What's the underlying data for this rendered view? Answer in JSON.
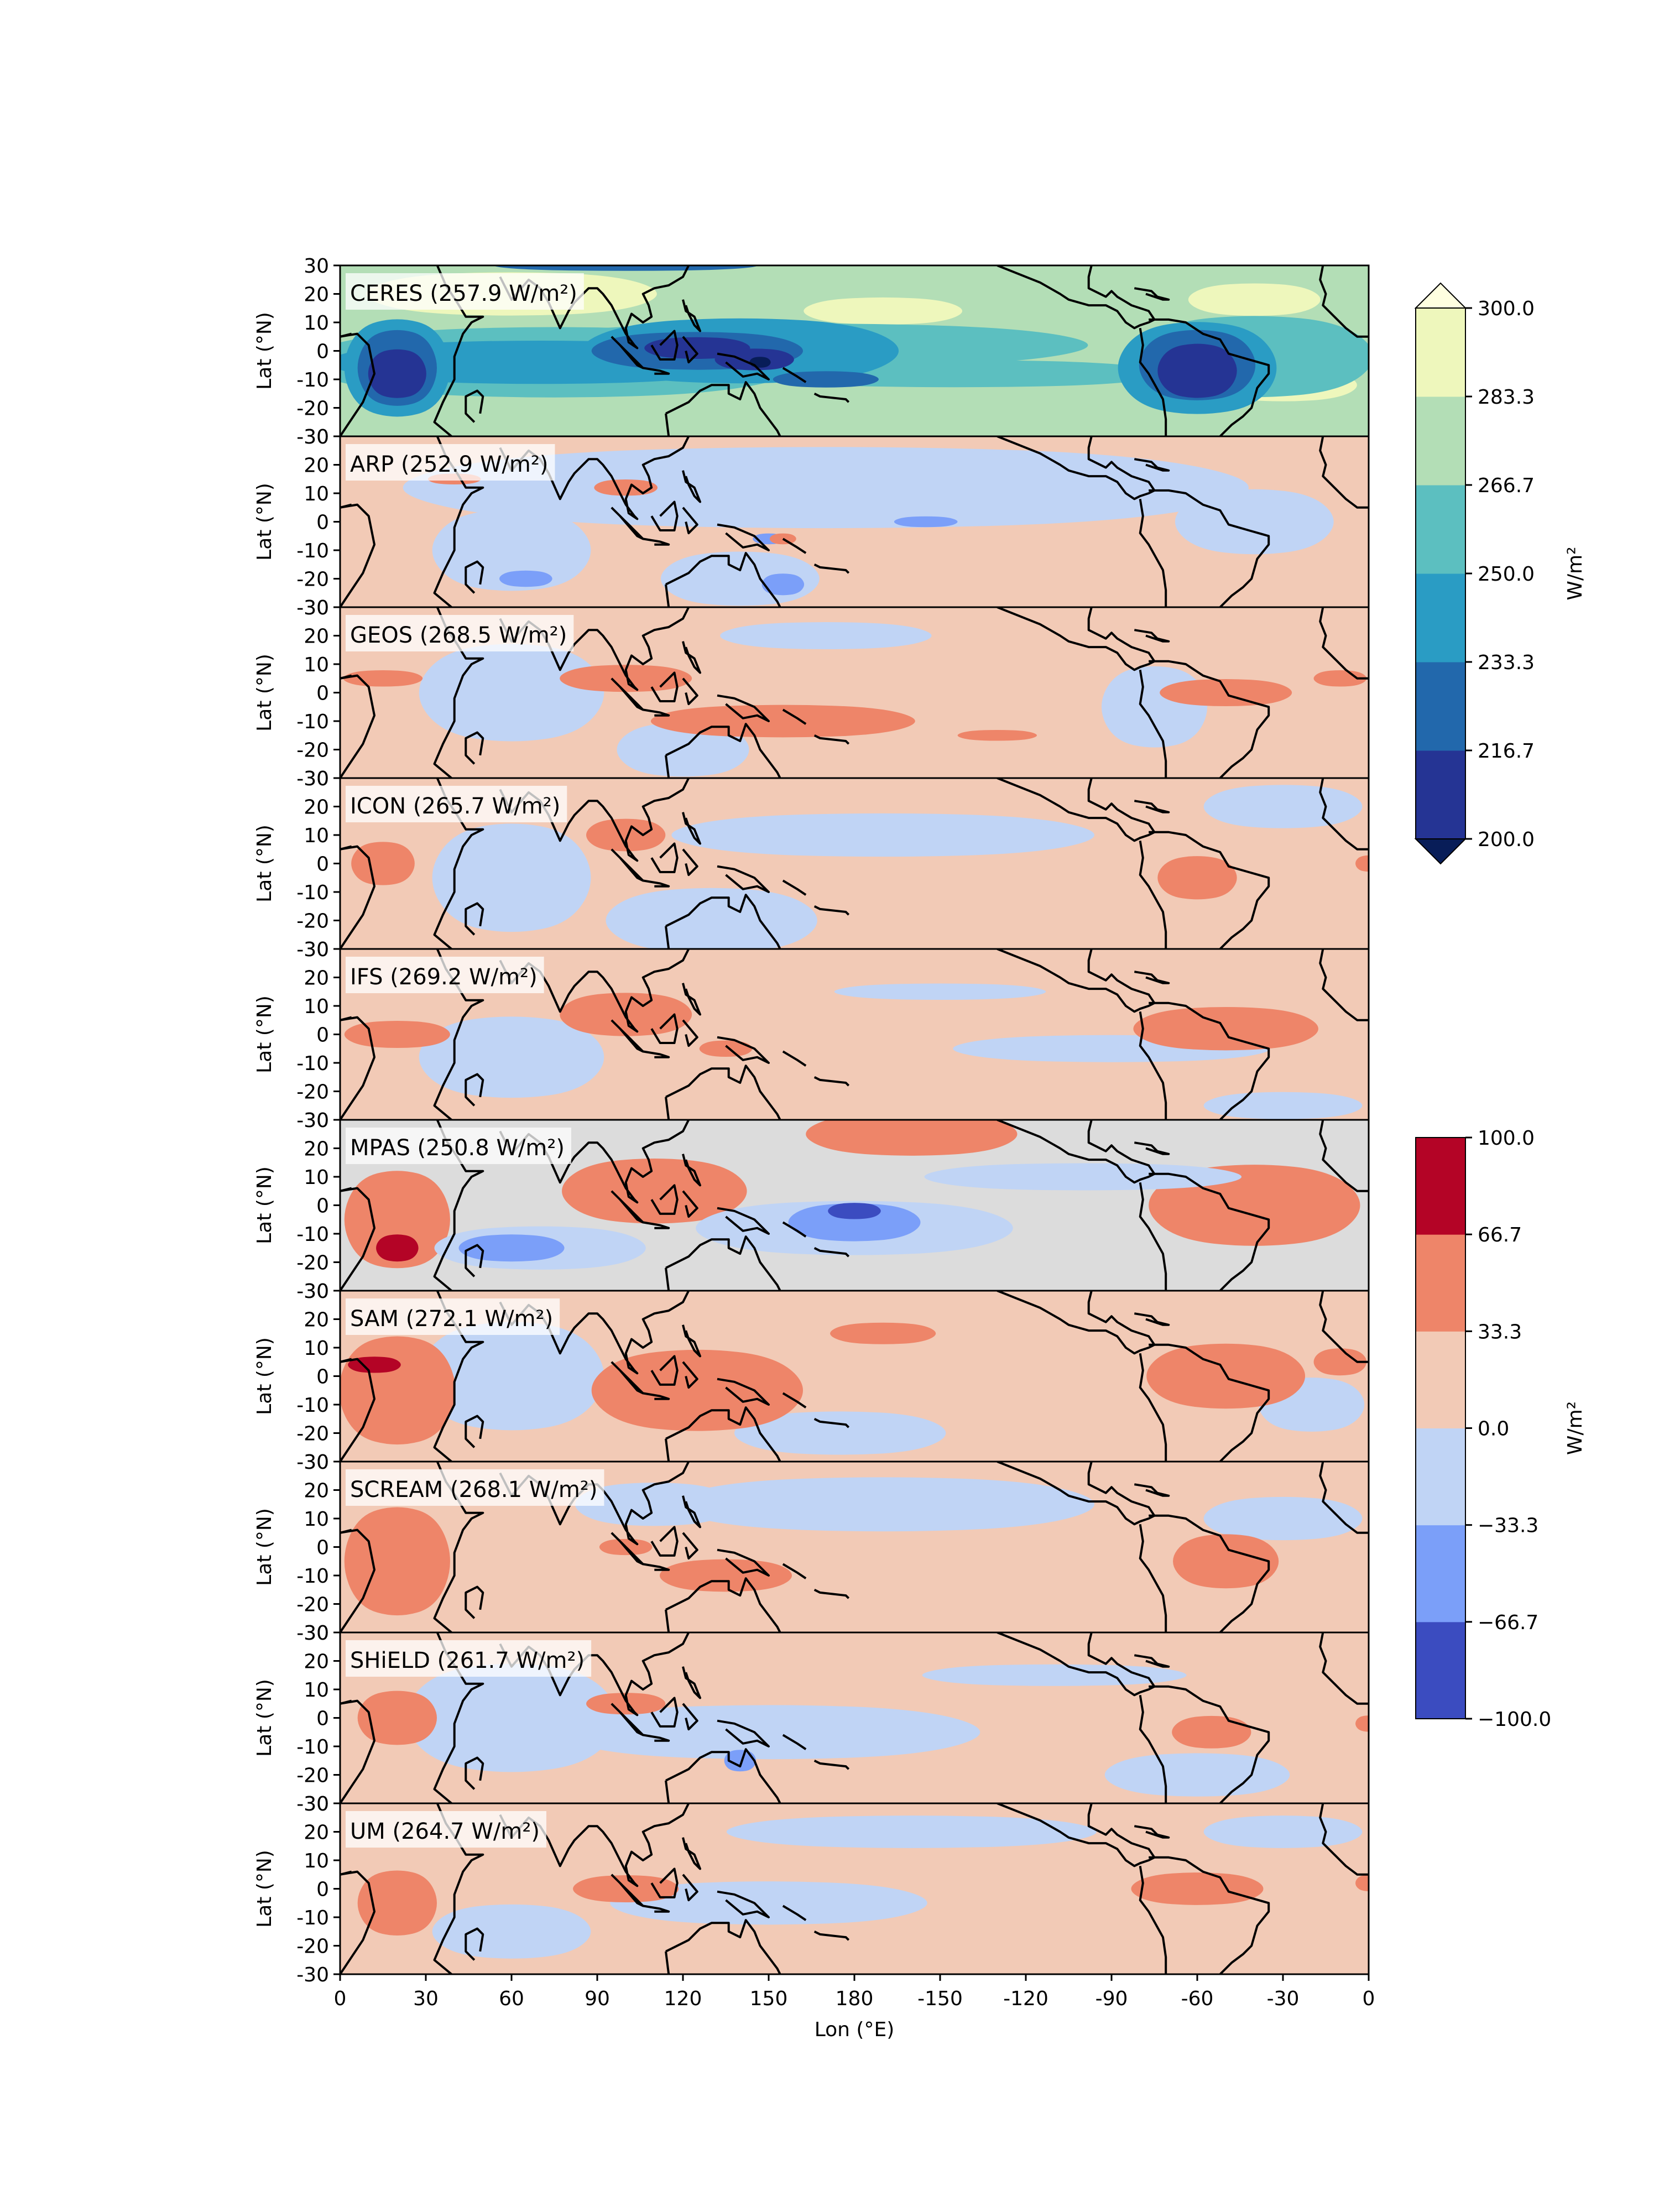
{
  "chart_data": {
    "type": "contour-map-panels",
    "xlabel": "Lon ($^\\circ$E)",
    "ylabel": "Lat ($^\\circ$N)",
    "xticks": [
      "0",
      "30",
      "60",
      "90",
      "120",
      "150",
      "180",
      "-150",
      "-120",
      "-90",
      "-60",
      "-30",
      "0"
    ],
    "yticks": [
      "30",
      "20",
      "10",
      "0",
      "-10",
      "-20",
      "-30"
    ],
    "xlim": [
      0,
      360
    ],
    "ylim": [
      -30,
      30
    ],
    "panels": [
      {
        "name": "CERES",
        "value": "257.9",
        "unit": "W/m²",
        "role": "observation"
      },
      {
        "name": "ARP",
        "value": "252.9",
        "unit": "W/m²",
        "role": "difference"
      },
      {
        "name": "GEOS",
        "value": "268.5",
        "unit": "W/m²",
        "role": "difference"
      },
      {
        "name": "ICON",
        "value": "265.7",
        "unit": "W/m²",
        "role": "difference"
      },
      {
        "name": "IFS",
        "value": "269.2",
        "unit": "W/m²",
        "role": "difference"
      },
      {
        "name": "MPAS",
        "value": "250.8",
        "unit": "W/m²",
        "role": "difference"
      },
      {
        "name": "SAM",
        "value": "272.1",
        "unit": "W/m²",
        "role": "difference"
      },
      {
        "name": "SCREAM",
        "value": "268.1",
        "unit": "W/m²",
        "role": "difference"
      },
      {
        "name": "SHiELD",
        "value": "261.7",
        "unit": "W/m²",
        "role": "difference"
      },
      {
        "name": "UM",
        "value": "264.7",
        "unit": "W/m²",
        "role": "difference"
      }
    ],
    "colorbars": [
      {
        "label": "W/m²",
        "ticks": [
          "300.0",
          "283.3",
          "266.7",
          "250.0",
          "233.3",
          "216.7",
          "200.0"
        ],
        "levels": [
          200.0,
          216.7,
          233.3,
          250.0,
          266.7,
          283.3,
          300.0
        ],
        "colors": [
          "#253494",
          "#2268ac",
          "#2a9cc4",
          "#5cbfc0",
          "#b3deb6",
          "#eef7bc"
        ],
        "extend": "both",
        "over_color": "#ffffe0",
        "under_color": "#081d58"
      },
      {
        "label": "W/m²",
        "ticks": [
          "100.0",
          "66.7",
          "33.3",
          "0.0",
          "−33.3",
          "−66.7",
          "−100.0"
        ],
        "levels": [
          -100.0,
          -66.7,
          -33.3,
          0.0,
          33.3,
          66.7,
          100.0
        ],
        "colors": [
          "#3b4cc0",
          "#7b9ff9",
          "#c0d4f5",
          "#f2cab6",
          "#ee8569",
          "#b40426"
        ]
      }
    ]
  },
  "colors": {
    "ceres_background": "#b3deb6",
    "diff_background": "#f2cab6",
    "coastline": "#000000"
  }
}
